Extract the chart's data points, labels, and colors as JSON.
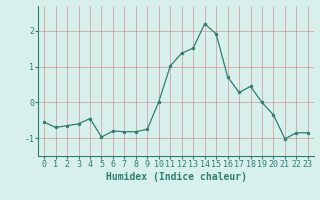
{
  "x": [
    0,
    1,
    2,
    3,
    4,
    5,
    6,
    7,
    8,
    9,
    10,
    11,
    12,
    13,
    14,
    15,
    16,
    17,
    18,
    19,
    20,
    21,
    22,
    23
  ],
  "y": [
    -0.55,
    -0.7,
    -0.65,
    -0.6,
    -0.45,
    -0.97,
    -0.8,
    -0.82,
    -0.82,
    -0.75,
    0.02,
    1.02,
    1.38,
    1.52,
    2.2,
    1.92,
    0.72,
    0.28,
    0.45,
    0.0,
    -0.35,
    -1.02,
    -0.85,
    -0.85
  ],
  "line_color": "#2d7f72",
  "marker": "o",
  "markersize": 2.0,
  "linewidth": 0.9,
  "xlabel": "Humidex (Indice chaleur)",
  "xlabel_fontsize": 7,
  "ylim": [
    -1.5,
    2.7
  ],
  "xlim": [
    -0.5,
    23.5
  ],
  "yticks": [
    -1,
    0,
    1,
    2
  ],
  "xtick_labels": [
    "0",
    "1",
    "2",
    "3",
    "4",
    "5",
    "6",
    "7",
    "8",
    "9",
    "10",
    "11",
    "12",
    "13",
    "14",
    "15",
    "16",
    "17",
    "18",
    "19",
    "20",
    "21",
    "22",
    "23"
  ],
  "background_color": "#d8f0eb",
  "grid_color": "#d08080",
  "grid_alpha": 0.8,
  "tick_fontsize": 6,
  "grid_linewidth": 0.5
}
